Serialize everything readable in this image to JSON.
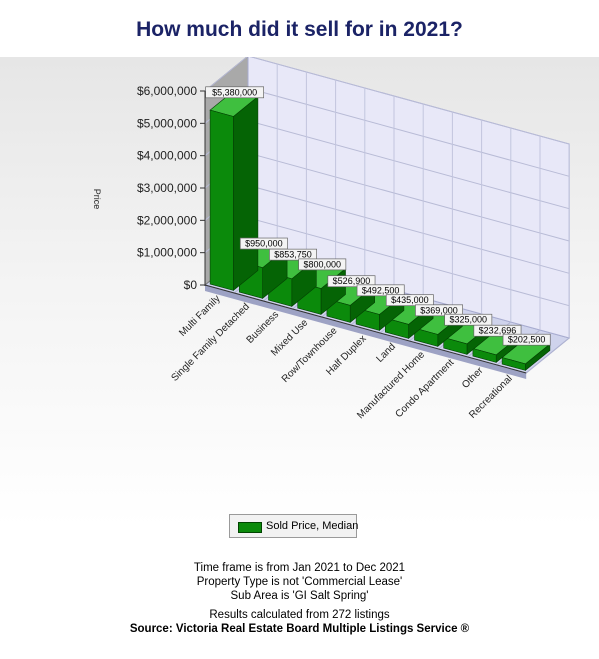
{
  "title": "How much did it sell for in 2021?",
  "legend": {
    "label": "Sold Price, Median"
  },
  "footer": {
    "line1": "Time frame is from Jan 2021 to Dec 2021",
    "line2": "Property Type is not 'Commercial Lease'",
    "line3": "Sub Area is 'GI Salt Spring'",
    "line4": "Results calculated from 272 listings",
    "source": "Source: Victoria Real Estate Board Multiple Listings Service ®"
  },
  "chart_data": {
    "type": "bar",
    "three_d": true,
    "title": "How much did it sell for in 2021?",
    "ylabel": "Price",
    "xlabel": "",
    "ylim": [
      0,
      6000000
    ],
    "yticks": [
      "$0",
      "$1,000,000",
      "$2,000,000",
      "$3,000,000",
      "$4,000,000",
      "$5,000,000",
      "$6,000,000"
    ],
    "grid": true,
    "legend_position": "bottom",
    "bar_color": "#0b8a0b",
    "categories": [
      "Multi Family",
      "Single Family Detached",
      "Business",
      "Mixed Use",
      "Row/Townhouse",
      "Half Duplex",
      "Land",
      "Manufactured Home",
      "Condo Apartment",
      "Other",
      "Recreational"
    ],
    "series": [
      {
        "name": "Sold Price, Median",
        "values": [
          5380000,
          950000,
          853750,
          800000,
          526900,
          492500,
          435000,
          369000,
          325000,
          232696,
          202500
        ],
        "labels": [
          "$5,380,000",
          "$950,000",
          "$853,750",
          "$800,000",
          "$526,900",
          "$492,500",
          "$435,000",
          "$369,000",
          "$325,000",
          "$232,696",
          "$202,500"
        ]
      }
    ]
  }
}
